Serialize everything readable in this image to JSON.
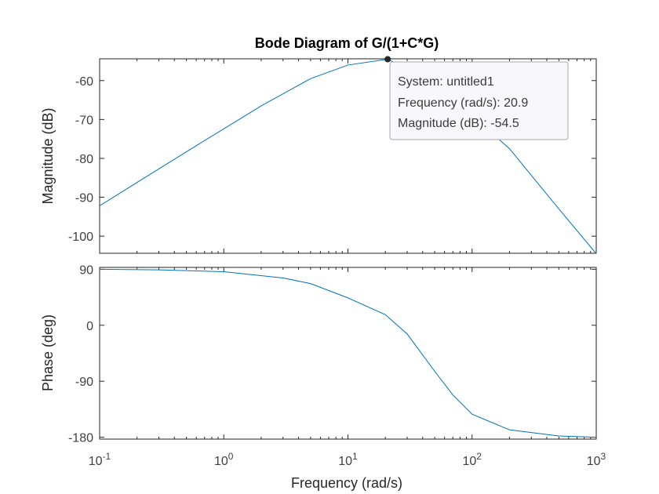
{
  "chart_data": {
    "type": "line",
    "title": "Bode Diagram of G/(1+C*G)",
    "xlabel": "Frequency  (rad/s)",
    "x_scale": "log",
    "xlim": [
      0.1,
      1000
    ],
    "x_tick_labels": [
      {
        "base": "10",
        "exp": "-1"
      },
      {
        "base": "10",
        "exp": "0"
      },
      {
        "base": "10",
        "exp": "1"
      },
      {
        "base": "10",
        "exp": "2"
      },
      {
        "base": "10",
        "exp": "3"
      }
    ],
    "grid": false,
    "subplots": [
      {
        "name": "magnitude",
        "ylabel": "Magnitude (dB)",
        "ylim": [
          -104.4,
          -54.4
        ],
        "y_ticks": [
          -60,
          -70,
          -80,
          -90,
          -100
        ],
        "series": [
          {
            "x": [
              0.1,
              0.2,
              0.5,
              1,
              2,
              5,
              10,
              20.9,
              50,
              100,
              200,
              500,
              1000
            ],
            "y": [
              -92.2,
              -86.2,
              -78.3,
              -72.4,
              -66.5,
              -59.5,
              -56.0,
              -54.5,
              -60.5,
              -69.0,
              -77.5,
              -93.0,
              -104.5
            ]
          }
        ],
        "datatip": {
          "x": 20.9,
          "y": -54.5,
          "lines": [
            "System: untitled1",
            "Frequency (rad/s): 20.9",
            "Magnitude (dB): -54.5"
          ]
        }
      },
      {
        "name": "phase",
        "ylabel": "Phase (deg)",
        "ylim": [
          -183,
          93
        ],
        "y_ticks": [
          90,
          0,
          -90,
          -180
        ],
        "series": [
          {
            "x": [
              0.1,
              0.3,
              1,
              3,
              5,
              10,
              20,
              30,
              50,
              70,
              100,
              200,
              500,
              1000
            ],
            "y": [
              90,
              89,
              86,
              76,
              67,
              44,
              17,
              -14,
              -74,
              -112,
              -143,
              -168,
              -178,
              -180
            ]
          }
        ]
      }
    ]
  }
}
